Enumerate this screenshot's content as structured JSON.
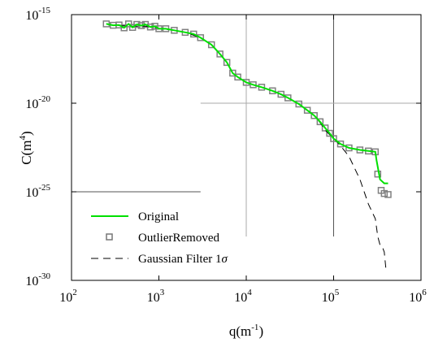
{
  "chart_data": {
    "type": "line",
    "xlabel_base": "q(m",
    "xlabel_sup": "-1",
    "xlabel_end": ")",
    "ylabel_base": "C(m",
    "ylabel_sup": "4",
    "ylabel_end": ")",
    "x_scale": "log",
    "y_scale": "log",
    "xlim": [
      100,
      1000000
    ],
    "ylim": [
      1e-30,
      1e-15
    ],
    "x_ticks": [
      {
        "value": 100,
        "base": "10",
        "exp": "2"
      },
      {
        "value": 1000,
        "base": "10",
        "exp": "3"
      },
      {
        "value": 10000,
        "base": "10",
        "exp": "4"
      },
      {
        "value": 100000,
        "base": "10",
        "exp": "5"
      },
      {
        "value": 1000000,
        "base": "10",
        "exp": "6"
      }
    ],
    "y_ticks": [
      {
        "value": 1e-30,
        "base": "10",
        "exp": "-30"
      },
      {
        "value": 1e-25,
        "base": "10",
        "exp": "-25"
      },
      {
        "value": 1e-20,
        "base": "10",
        "exp": "-20"
      },
      {
        "value": 1e-15,
        "base": "10",
        "exp": "-15"
      }
    ],
    "legend_position": "bottom-left",
    "series": [
      {
        "name": "Original",
        "style": "solid",
        "color": "#00e000",
        "x": [
          250,
          300,
          350,
          400,
          450,
          500,
          560,
          630,
          700,
          800,
          900,
          1000,
          1200,
          1500,
          2000,
          2500,
          3000,
          4000,
          5000,
          6000,
          7000,
          8000,
          10000,
          12000,
          15000,
          20000,
          25000,
          30000,
          40000,
          50000,
          60000,
          70000,
          80000,
          90000,
          100000,
          120000,
          150000,
          200000,
          250000,
          300000,
          310000,
          340000,
          380000,
          420000
        ],
        "y": [
          3e-16,
          2.5e-16,
          2.6e-16,
          1.8e-16,
          3e-16,
          1.9e-16,
          2.8e-16,
          2.4e-16,
          2.8e-16,
          2e-16,
          2.2e-16,
          1.6e-16,
          1.6e-16,
          1.3e-16,
          1e-16,
          8e-17,
          5e-17,
          2e-17,
          6e-18,
          2e-18,
          5e-19,
          3e-19,
          1.5e-19,
          1.1e-19,
          8e-20,
          5e-20,
          3.2e-20,
          2e-20,
          9e-21,
          4e-21,
          2e-21,
          9e-22,
          4e-22,
          2e-22,
          1e-22,
          5e-23,
          3e-23,
          2.3e-23,
          2e-23,
          1.8e-23,
          6e-24,
          5e-25,
          3e-25,
          3e-25
        ]
      },
      {
        "name": "OutlierRemoved",
        "style": "markers",
        "color": "#808080",
        "x": [
          250,
          300,
          350,
          400,
          450,
          500,
          560,
          630,
          700,
          800,
          900,
          1000,
          1200,
          1500,
          2000,
          2500,
          3000,
          4000,
          5000,
          6000,
          7000,
          8000,
          10000,
          12000,
          15000,
          20000,
          25000,
          30000,
          40000,
          50000,
          60000,
          70000,
          80000,
          90000,
          100000,
          120000,
          150000,
          200000,
          250000,
          300000,
          320000,
          350000,
          380000,
          420000
        ],
        "y": [
          3e-16,
          2.5e-16,
          2.6e-16,
          1.8e-16,
          3e-16,
          1.9e-16,
          2.8e-16,
          2.4e-16,
          2.8e-16,
          2e-16,
          2.2e-16,
          1.6e-16,
          1.6e-16,
          1.3e-16,
          1e-16,
          8e-17,
          5e-17,
          2e-17,
          6e-18,
          2e-18,
          5e-19,
          3e-19,
          1.5e-19,
          1.1e-19,
          8e-20,
          5e-20,
          3.2e-20,
          2e-20,
          9e-21,
          4e-21,
          2e-21,
          9e-22,
          4e-22,
          2e-22,
          1e-22,
          5e-23,
          3e-23,
          2.3e-23,
          2e-23,
          1.8e-23,
          1e-24,
          1.2e-25,
          8e-26,
          7e-26
        ]
      },
      {
        "name": "Gaussian Filter 1",
        "name_symbol": "σ",
        "style": "dashed",
        "color": "#000000",
        "x": [
          250,
          300,
          400,
          500,
          700,
          1000,
          1500,
          2000,
          3000,
          4000,
          5000,
          6000,
          7000,
          8000,
          10000,
          15000,
          20000,
          30000,
          40000,
          50000,
          60000,
          70000,
          80000,
          100000,
          120000,
          150000,
          200000,
          250000,
          300000,
          320000,
          340000,
          360000,
          380000,
          400000
        ],
        "y": [
          3e-16,
          2.5e-16,
          2.3e-16,
          2.2e-16,
          2.2e-16,
          1.7e-16,
          1.3e-16,
          1e-16,
          5e-17,
          2e-17,
          6e-18,
          2e-18,
          5e-19,
          3e-19,
          1.5e-19,
          8e-20,
          5e-20,
          2e-20,
          9e-21,
          4e-21,
          2e-21,
          8e-22,
          3e-22,
          1e-22,
          4e-23,
          1e-23,
          5e-25,
          2e-26,
          3e-27,
          3e-28,
          1e-28,
          8e-29,
          4e-29,
          3e-30
        ]
      }
    ],
    "reference_lines": [
      {
        "orientation": "vertical",
        "x": 100000,
        "y_from": 1e-15,
        "y_to": 3e-28,
        "color": "#555555"
      },
      {
        "orientation": "vertical",
        "x": 10000,
        "y_from": 1e-15,
        "y_to": 3e-28,
        "color": "#aaaaaa"
      },
      {
        "orientation": "horizontal",
        "y": 1e-20,
        "x_from": 3000,
        "x_to": 1000000,
        "color": "#aaaaaa"
      },
      {
        "orientation": "horizontal",
        "y": 1e-25,
        "x_from": 100,
        "x_to": 3000,
        "color": "#555555"
      }
    ]
  }
}
